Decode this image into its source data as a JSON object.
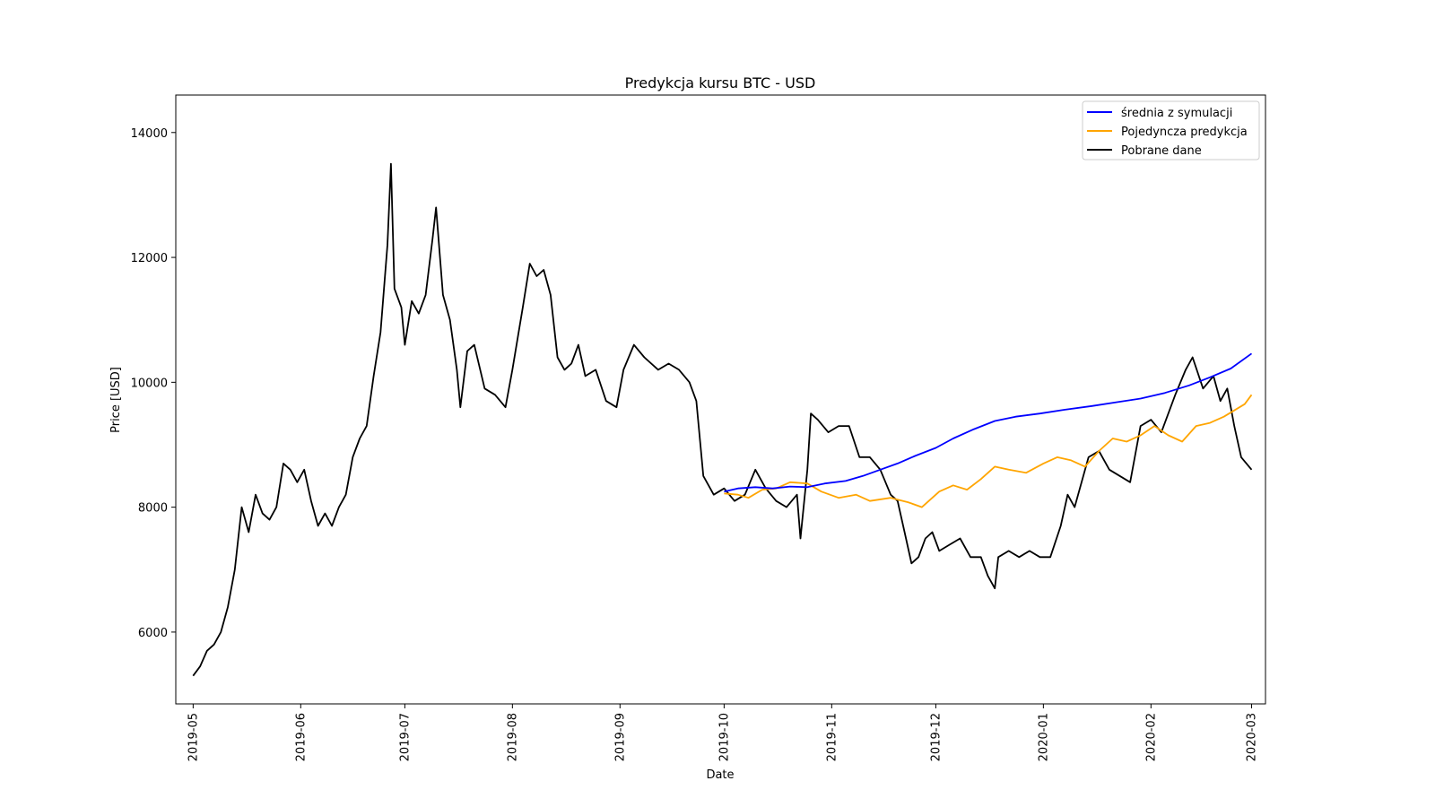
{
  "chart_data": {
    "type": "line",
    "title": "Predykcja kursu BTC - USD",
    "xlabel": "Date",
    "ylabel": "Price [USD]",
    "x_range": [
      "2019-04-26",
      "2020-03-05"
    ],
    "ylim": [
      4850,
      14600
    ],
    "x_ticks": [
      "2019-05",
      "2019-06",
      "2019-07",
      "2019-08",
      "2019-09",
      "2019-10",
      "2019-11",
      "2019-12",
      "2020-01",
      "2020-02",
      "2020-03"
    ],
    "y_ticks": [
      6000,
      8000,
      10000,
      12000,
      14000
    ],
    "y_tick_labels": [
      "6000",
      "8000",
      "10000",
      "12000",
      "14000"
    ],
    "grid": false,
    "legend_position": "top-right",
    "series": [
      {
        "name": "średnia z symulacji",
        "color": "#0000ff",
        "points": [
          [
            "2019-10-01",
            8250
          ],
          [
            "2019-10-05",
            8300
          ],
          [
            "2019-10-10",
            8320
          ],
          [
            "2019-10-15",
            8300
          ],
          [
            "2019-10-20",
            8330
          ],
          [
            "2019-10-25",
            8320
          ],
          [
            "2019-10-30",
            8380
          ],
          [
            "2019-11-05",
            8420
          ],
          [
            "2019-11-10",
            8500
          ],
          [
            "2019-11-15",
            8600
          ],
          [
            "2019-11-20",
            8700
          ],
          [
            "2019-11-25",
            8820
          ],
          [
            "2019-12-01",
            8950
          ],
          [
            "2019-12-06",
            9100
          ],
          [
            "2019-12-12",
            9250
          ],
          [
            "2019-12-18",
            9380
          ],
          [
            "2019-12-24",
            9450
          ],
          [
            "2019-12-31",
            9500
          ],
          [
            "2020-01-07",
            9560
          ],
          [
            "2020-01-15",
            9620
          ],
          [
            "2020-01-22",
            9680
          ],
          [
            "2020-01-29",
            9740
          ],
          [
            "2020-02-05",
            9830
          ],
          [
            "2020-02-12",
            9950
          ],
          [
            "2020-02-18",
            10080
          ],
          [
            "2020-02-24",
            10220
          ],
          [
            "2020-03-01",
            10460
          ]
        ]
      },
      {
        "name": "Pojedyncza predykcja",
        "color": "#ffa500",
        "points": [
          [
            "2019-10-01",
            8220
          ],
          [
            "2019-10-05",
            8200
          ],
          [
            "2019-10-08",
            8150
          ],
          [
            "2019-10-12",
            8280
          ],
          [
            "2019-10-16",
            8300
          ],
          [
            "2019-10-20",
            8400
          ],
          [
            "2019-10-25",
            8380
          ],
          [
            "2019-10-29",
            8250
          ],
          [
            "2019-11-03",
            8150
          ],
          [
            "2019-11-08",
            8200
          ],
          [
            "2019-11-12",
            8100
          ],
          [
            "2019-11-18",
            8150
          ],
          [
            "2019-11-23",
            8080
          ],
          [
            "2019-11-27",
            8000
          ],
          [
            "2019-12-02",
            8250
          ],
          [
            "2019-12-06",
            8350
          ],
          [
            "2019-12-10",
            8280
          ],
          [
            "2019-12-14",
            8450
          ],
          [
            "2019-12-18",
            8650
          ],
          [
            "2019-12-22",
            8600
          ],
          [
            "2019-12-27",
            8550
          ],
          [
            "2020-01-01",
            8700
          ],
          [
            "2020-01-05",
            8800
          ],
          [
            "2020-01-09",
            8750
          ],
          [
            "2020-01-13",
            8650
          ],
          [
            "2020-01-17",
            8900
          ],
          [
            "2020-01-21",
            9100
          ],
          [
            "2020-01-25",
            9050
          ],
          [
            "2020-01-29",
            9150
          ],
          [
            "2020-02-02",
            9300
          ],
          [
            "2020-02-06",
            9150
          ],
          [
            "2020-02-10",
            9050
          ],
          [
            "2020-02-14",
            9300
          ],
          [
            "2020-02-18",
            9350
          ],
          [
            "2020-02-22",
            9450
          ],
          [
            "2020-02-25",
            9550
          ],
          [
            "2020-02-28",
            9650
          ],
          [
            "2020-03-01",
            9800
          ]
        ]
      },
      {
        "name": "Pobrane dane",
        "color": "#000000",
        "points": [
          [
            "2019-05-01",
            5300
          ],
          [
            "2019-05-03",
            5450
          ],
          [
            "2019-05-05",
            5700
          ],
          [
            "2019-05-07",
            5800
          ],
          [
            "2019-05-09",
            6000
          ],
          [
            "2019-05-11",
            6400
          ],
          [
            "2019-05-13",
            7000
          ],
          [
            "2019-05-15",
            8000
          ],
          [
            "2019-05-17",
            7600
          ],
          [
            "2019-05-19",
            8200
          ],
          [
            "2019-05-21",
            7900
          ],
          [
            "2019-05-23",
            7800
          ],
          [
            "2019-05-25",
            8000
          ],
          [
            "2019-05-27",
            8700
          ],
          [
            "2019-05-29",
            8600
          ],
          [
            "2019-05-31",
            8400
          ],
          [
            "2019-06-02",
            8600
          ],
          [
            "2019-06-04",
            8100
          ],
          [
            "2019-06-06",
            7700
          ],
          [
            "2019-06-08",
            7900
          ],
          [
            "2019-06-10",
            7700
          ],
          [
            "2019-06-12",
            8000
          ],
          [
            "2019-06-14",
            8200
          ],
          [
            "2019-06-16",
            8800
          ],
          [
            "2019-06-18",
            9100
          ],
          [
            "2019-06-20",
            9300
          ],
          [
            "2019-06-22",
            10100
          ],
          [
            "2019-06-24",
            10800
          ],
          [
            "2019-06-26",
            12200
          ],
          [
            "2019-06-27",
            13500
          ],
          [
            "2019-06-28",
            11500
          ],
          [
            "2019-06-30",
            11200
          ],
          [
            "2019-07-01",
            10600
          ],
          [
            "2019-07-03",
            11300
          ],
          [
            "2019-07-05",
            11100
          ],
          [
            "2019-07-07",
            11400
          ],
          [
            "2019-07-09",
            12300
          ],
          [
            "2019-07-10",
            12800
          ],
          [
            "2019-07-12",
            11400
          ],
          [
            "2019-07-14",
            11000
          ],
          [
            "2019-07-16",
            10200
          ],
          [
            "2019-07-17",
            9600
          ],
          [
            "2019-07-19",
            10500
          ],
          [
            "2019-07-21",
            10600
          ],
          [
            "2019-07-24",
            9900
          ],
          [
            "2019-07-27",
            9800
          ],
          [
            "2019-07-30",
            9600
          ],
          [
            "2019-08-01",
            10200
          ],
          [
            "2019-08-04",
            11200
          ],
          [
            "2019-08-06",
            11900
          ],
          [
            "2019-08-08",
            11700
          ],
          [
            "2019-08-10",
            11800
          ],
          [
            "2019-08-12",
            11400
          ],
          [
            "2019-08-14",
            10400
          ],
          [
            "2019-08-16",
            10200
          ],
          [
            "2019-08-18",
            10300
          ],
          [
            "2019-08-20",
            10600
          ],
          [
            "2019-08-22",
            10100
          ],
          [
            "2019-08-25",
            10200
          ],
          [
            "2019-08-28",
            9700
          ],
          [
            "2019-08-31",
            9600
          ],
          [
            "2019-09-02",
            10200
          ],
          [
            "2019-09-05",
            10600
          ],
          [
            "2019-09-08",
            10400
          ],
          [
            "2019-09-12",
            10200
          ],
          [
            "2019-09-15",
            10300
          ],
          [
            "2019-09-18",
            10200
          ],
          [
            "2019-09-21",
            10000
          ],
          [
            "2019-09-23",
            9700
          ],
          [
            "2019-09-25",
            8500
          ],
          [
            "2019-09-28",
            8200
          ],
          [
            "2019-10-01",
            8300
          ],
          [
            "2019-10-04",
            8100
          ],
          [
            "2019-10-07",
            8200
          ],
          [
            "2019-10-10",
            8600
          ],
          [
            "2019-10-13",
            8300
          ],
          [
            "2019-10-16",
            8100
          ],
          [
            "2019-10-19",
            8000
          ],
          [
            "2019-10-22",
            8200
          ],
          [
            "2019-10-23",
            7500
          ],
          [
            "2019-10-25",
            8600
          ],
          [
            "2019-10-26",
            9500
          ],
          [
            "2019-10-28",
            9400
          ],
          [
            "2019-10-31",
            9200
          ],
          [
            "2019-11-03",
            9300
          ],
          [
            "2019-11-06",
            9300
          ],
          [
            "2019-11-09",
            8800
          ],
          [
            "2019-11-12",
            8800
          ],
          [
            "2019-11-15",
            8600
          ],
          [
            "2019-11-18",
            8200
          ],
          [
            "2019-11-20",
            8100
          ],
          [
            "2019-11-22",
            7600
          ],
          [
            "2019-11-24",
            7100
          ],
          [
            "2019-11-26",
            7200
          ],
          [
            "2019-11-28",
            7500
          ],
          [
            "2019-11-30",
            7600
          ],
          [
            "2019-12-02",
            7300
          ],
          [
            "2019-12-05",
            7400
          ],
          [
            "2019-12-08",
            7500
          ],
          [
            "2019-12-11",
            7200
          ],
          [
            "2019-12-14",
            7200
          ],
          [
            "2019-12-16",
            6900
          ],
          [
            "2019-12-18",
            6700
          ],
          [
            "2019-12-19",
            7200
          ],
          [
            "2019-12-22",
            7300
          ],
          [
            "2019-12-25",
            7200
          ],
          [
            "2019-12-28",
            7300
          ],
          [
            "2019-12-31",
            7200
          ],
          [
            "2020-01-03",
            7200
          ],
          [
            "2020-01-06",
            7700
          ],
          [
            "2020-01-08",
            8200
          ],
          [
            "2020-01-10",
            8000
          ],
          [
            "2020-01-14",
            8800
          ],
          [
            "2020-01-17",
            8900
          ],
          [
            "2020-01-20",
            8600
          ],
          [
            "2020-01-23",
            8500
          ],
          [
            "2020-01-26",
            8400
          ],
          [
            "2020-01-29",
            9300
          ],
          [
            "2020-02-01",
            9400
          ],
          [
            "2020-02-04",
            9200
          ],
          [
            "2020-02-08",
            9800
          ],
          [
            "2020-02-11",
            10200
          ],
          [
            "2020-02-13",
            10400
          ],
          [
            "2020-02-16",
            9900
          ],
          [
            "2020-02-19",
            10100
          ],
          [
            "2020-02-21",
            9700
          ],
          [
            "2020-02-23",
            9900
          ],
          [
            "2020-02-25",
            9300
          ],
          [
            "2020-02-27",
            8800
          ],
          [
            "2020-03-01",
            8600
          ]
        ]
      }
    ]
  }
}
